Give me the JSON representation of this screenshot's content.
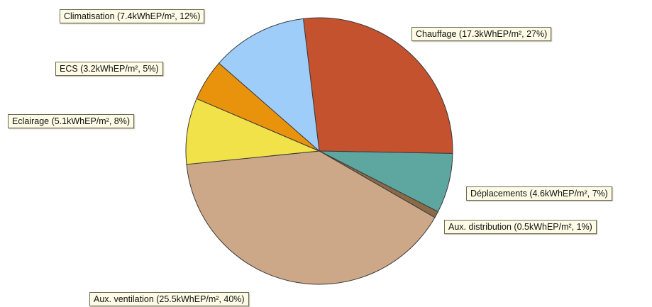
{
  "chart_data": {
    "type": "pie",
    "unit": "kWhEP/m²",
    "slices": [
      {
        "name": "Chauffage",
        "value": 17.3,
        "percent": 27,
        "color": "#c4522f",
        "label": "Chauffage (17.3kWhEP/m², 27%)"
      },
      {
        "name": "Déplacements",
        "value": 4.6,
        "percent": 7,
        "color": "#5ea6a0",
        "label": "Déplacements (4.6kWhEP/m², 7%)"
      },
      {
        "name": "Aux. distribution",
        "value": 0.5,
        "percent": 1,
        "color": "#8a6a48",
        "label": "Aux. distribution (0.5kWhEP/m², 1%)"
      },
      {
        "name": "Aux. ventilation",
        "value": 25.5,
        "percent": 40,
        "color": "#cda888",
        "label": "Aux. ventilation (25.5kWhEP/m², 40%)"
      },
      {
        "name": "Eclairage",
        "value": 5.1,
        "percent": 8,
        "color": "#f2e24a",
        "label": "Eclairage (5.1kWhEP/m², 8%)"
      },
      {
        "name": "ECS",
        "value": 3.2,
        "percent": 5,
        "color": "#e9920b",
        "label": "ECS (3.2kWhEP/m², 5%)"
      },
      {
        "name": "Climatisation",
        "value": 7.4,
        "percent": 12,
        "color": "#9fcdfa",
        "label": "Climatisation (7.4kWhEP/m², 12%)"
      }
    ]
  }
}
